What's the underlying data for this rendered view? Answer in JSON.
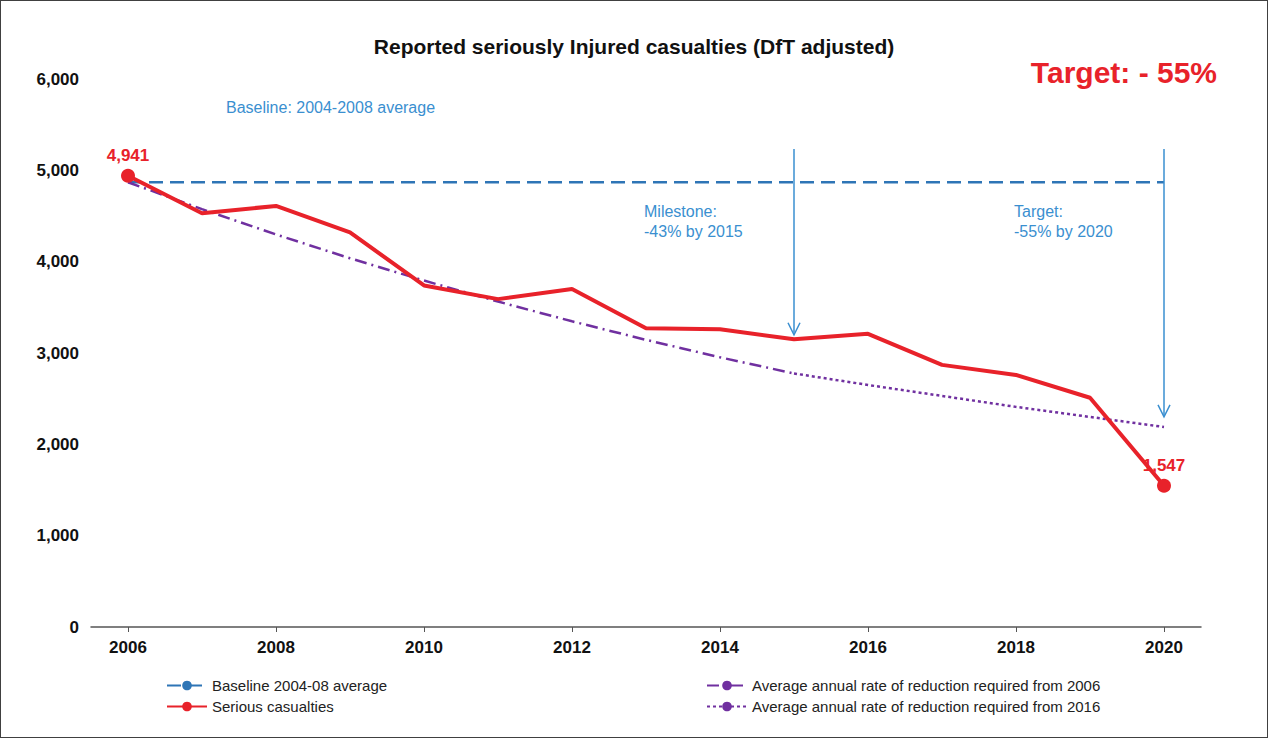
{
  "chart_data": {
    "type": "line",
    "title": "Reported seriously Injured casualties (DfT adjusted)",
    "annotations": [
      {
        "text": "Target: - 55%"
      },
      {
        "text": "Baseline: 2004-2008 average"
      },
      {
        "text": "Milestone:\n-43% by 2015",
        "x": 2015,
        "y": 3200
      },
      {
        "text": "Target:\n-55% by 2020",
        "x": 2020,
        "y": 2300
      }
    ],
    "x": [
      2006,
      2007,
      2008,
      2009,
      2010,
      2011,
      2012,
      2013,
      2014,
      2015,
      2016,
      2017,
      2018,
      2019,
      2020
    ],
    "xlim": [
      2005.5,
      2020.5
    ],
    "xticks": [
      2006,
      2008,
      2010,
      2012,
      2014,
      2016,
      2018,
      2020
    ],
    "ylim": [
      0,
      6000
    ],
    "yticks": [
      0,
      {
        "value": 1000,
        "label": "1,000"
      },
      {
        "value": 2000,
        "label": "2,000"
      },
      {
        "value": 3000,
        "label": "3,000"
      },
      {
        "value": 4000,
        "label": "4,000"
      },
      {
        "value": 5000,
        "label": "5,000"
      },
      {
        "value": 6000,
        "label": "6,000"
      }
    ],
    "grid": false,
    "legend": "bottom",
    "series": [
      {
        "name": "Baseline 2004-08 average",
        "color": "#2e75b6",
        "line_style": "dashed",
        "values": [
          4870,
          4870,
          4870,
          4870,
          4870,
          4870,
          4870,
          4870,
          4870,
          4870,
          4870,
          4870,
          4870,
          4870,
          4870
        ]
      },
      {
        "name": "Serious casualties",
        "color": "#e8222a",
        "line_style": "solid",
        "marker": "circle",
        "values": [
          4941,
          4530,
          4610,
          4320,
          3740,
          3590,
          3700,
          3270,
          3260,
          3150,
          3210,
          2870,
          2760,
          2510,
          1547
        ],
        "value_labels": [
          "4,941",
          null,
          null,
          null,
          null,
          null,
          null,
          null,
          null,
          null,
          null,
          null,
          null,
          null,
          "1,547"
        ]
      },
      {
        "name": "Average annual rate of reduction required from 2006",
        "color": "#7030a0",
        "line_style": "dashdot",
        "values": [
          4870,
          4575,
          4298,
          4037,
          3793,
          3563,
          3347,
          3144,
          2953,
          2776,
          null,
          null,
          null,
          null,
          null
        ]
      },
      {
        "name": "Average annual rate of reduction required from 2016",
        "color": "#7030a0",
        "line_style": "dotted",
        "values": [
          null,
          null,
          null,
          null,
          null,
          null,
          null,
          null,
          null,
          2776,
          2650,
          2530,
          2410,
          2300,
          2190
        ]
      }
    ]
  }
}
